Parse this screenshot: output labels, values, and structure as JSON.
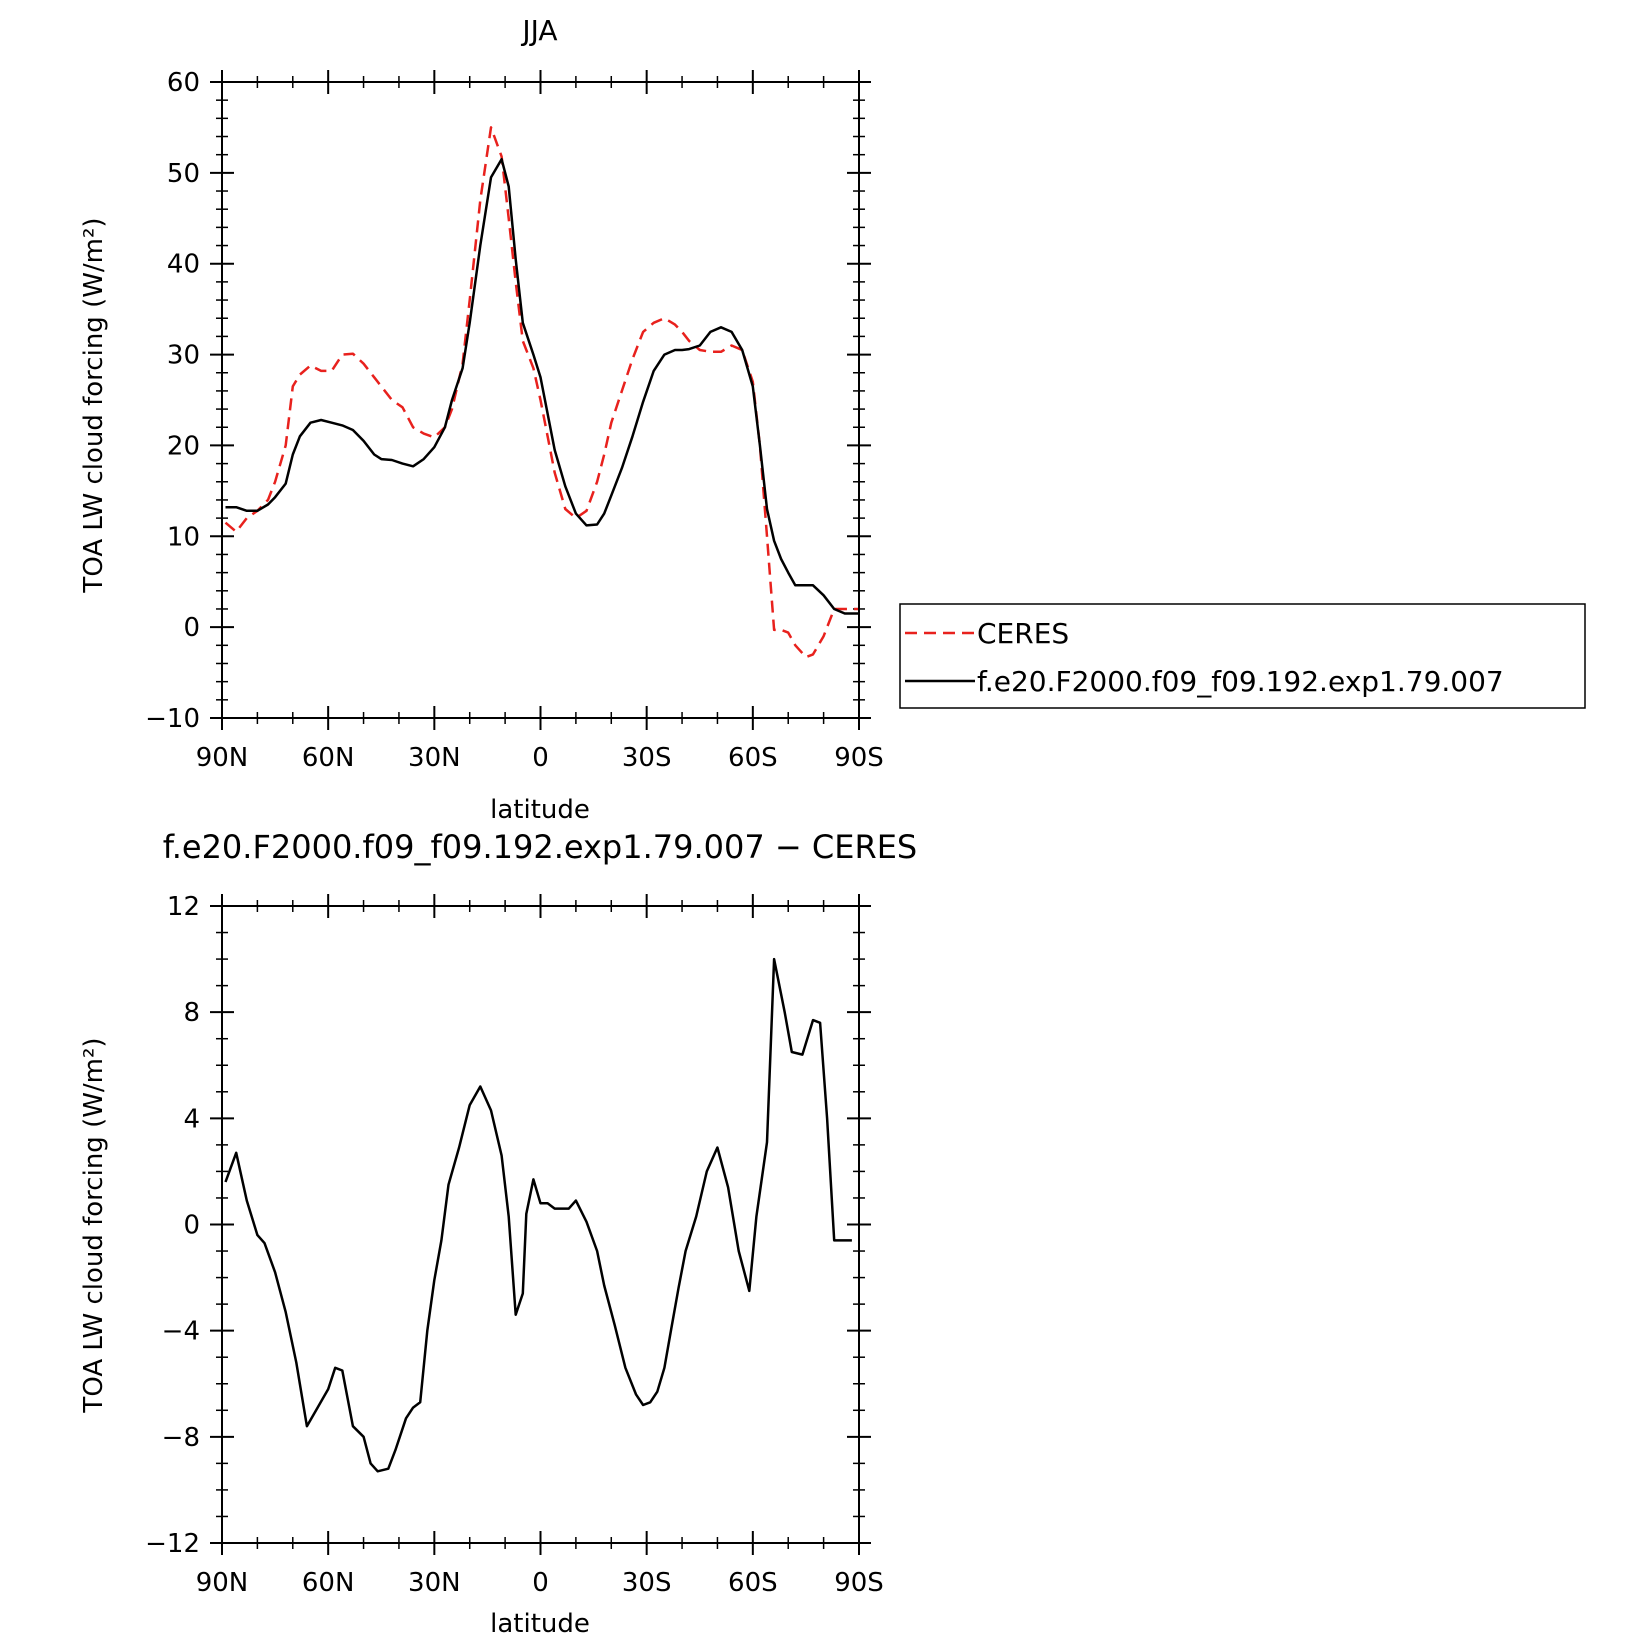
{
  "chart_data": [
    {
      "type": "line",
      "title": "JJA",
      "xlabel": "latitude",
      "ylabel": "TOA LW cloud forcing (W/m²)",
      "xlim": [
        90,
        -90
      ],
      "ylim": [
        -10,
        60
      ],
      "xticks": [
        {
          "value": 90,
          "label": "90N"
        },
        {
          "value": 60,
          "label": "60N"
        },
        {
          "value": 30,
          "label": "30N"
        },
        {
          "value": 0,
          "label": "0"
        },
        {
          "value": -30,
          "label": "30S"
        },
        {
          "value": -60,
          "label": "60S"
        },
        {
          "value": -90,
          "label": "90S"
        }
      ],
      "yticks": [
        -10,
        0,
        10,
        20,
        30,
        40,
        50,
        60
      ],
      "legend": {
        "position": "right"
      },
      "series": [
        {
          "name": "CERES",
          "color": "#e8211d",
          "dash": "dashed",
          "x": [
            89,
            86,
            83,
            80,
            77,
            75,
            72,
            70,
            68,
            65,
            62,
            59,
            56,
            53,
            50,
            47,
            45,
            42,
            39,
            36,
            33,
            30,
            27,
            25,
            22,
            20,
            17,
            14,
            11,
            9,
            7,
            5,
            2,
            0,
            -2,
            -4,
            -7,
            -10,
            -13,
            -16,
            -18,
            -20,
            -23,
            -26,
            -29,
            -32,
            -35,
            -38,
            -40,
            -42,
            -45,
            -48,
            -51,
            -54,
            -57,
            -60,
            -62,
            -64,
            -66,
            -68,
            -70,
            -72,
            -75,
            -77,
            -80,
            -83,
            -85,
            -88,
            -90
          ],
          "y": [
            11.5,
            10.5,
            12.0,
            12.8,
            14.0,
            16.0,
            20.0,
            26.5,
            27.8,
            28.8,
            28.2,
            28.2,
            30.0,
            30.1,
            29.0,
            27.5,
            26.5,
            25.0,
            24.2,
            22.0,
            21.3,
            20.9,
            22.0,
            24.0,
            29.0,
            36.0,
            47.0,
            55.0,
            51.8,
            45.0,
            38.0,
            31.5,
            28.5,
            25.0,
            21.0,
            17.0,
            13.0,
            12.0,
            12.8,
            16.0,
            19.0,
            22.5,
            26.0,
            29.5,
            32.5,
            33.5,
            34.0,
            33.3,
            32.5,
            31.5,
            30.5,
            30.3,
            30.3,
            31.0,
            30.5,
            27.0,
            20.0,
            10.0,
            -0.3,
            -0.3,
            -0.6,
            -2.0,
            -3.3,
            -3.0,
            -1.0,
            2.0,
            2.0,
            2.0,
            2.0
          ]
        },
        {
          "name": "f.e20.F2000.f09_f09.192.exp1.79.007",
          "color": "#000000",
          "dash": "solid",
          "x": [
            89,
            86,
            83,
            80,
            77,
            75,
            72,
            70,
            68,
            65,
            62,
            59,
            56,
            53,
            50,
            47,
            45,
            42,
            39,
            36,
            33,
            30,
            27,
            25,
            22,
            20,
            17,
            14,
            11,
            9,
            7,
            5,
            2,
            0,
            -2,
            -4,
            -7,
            -10,
            -13,
            -16,
            -18,
            -20,
            -23,
            -26,
            -29,
            -32,
            -35,
            -38,
            -40,
            -42,
            -45,
            -48,
            -51,
            -54,
            -57,
            -60,
            -62,
            -64,
            -66,
            -68,
            -70,
            -72,
            -75,
            -77,
            -80,
            -83,
            -86,
            -88,
            -90
          ],
          "y": [
            13.2,
            13.2,
            12.8,
            12.8,
            13.5,
            14.3,
            15.8,
            19.0,
            21.0,
            22.5,
            22.8,
            22.5,
            22.2,
            21.7,
            20.5,
            19.0,
            18.5,
            18.4,
            18.0,
            17.7,
            18.5,
            19.8,
            22.0,
            25.0,
            28.5,
            33.5,
            42.0,
            49.5,
            51.5,
            48.5,
            40.5,
            33.5,
            30.0,
            27.5,
            23.5,
            19.5,
            15.5,
            12.5,
            11.2,
            11.3,
            12.5,
            14.5,
            17.5,
            21.0,
            24.8,
            28.2,
            30.0,
            30.5,
            30.5,
            30.6,
            31.0,
            32.5,
            33.0,
            32.5,
            30.5,
            26.5,
            20.0,
            13.0,
            9.5,
            7.5,
            6.0,
            4.6,
            4.6,
            4.6,
            3.5,
            2.0,
            1.5,
            1.5,
            1.5
          ]
        }
      ]
    },
    {
      "type": "line",
      "title": "f.e20.F2000.f09_f09.192.exp1.79.007 − CERES",
      "xlabel": "latitude",
      "ylabel": "TOA LW cloud forcing (W/m²)",
      "xlim": [
        90,
        -90
      ],
      "ylim": [
        -12,
        12
      ],
      "xticks": [
        {
          "value": 90,
          "label": "90N"
        },
        {
          "value": 60,
          "label": "60N"
        },
        {
          "value": 30,
          "label": "30N"
        },
        {
          "value": 0,
          "label": "0"
        },
        {
          "value": -30,
          "label": "30S"
        },
        {
          "value": -60,
          "label": "60S"
        },
        {
          "value": -90,
          "label": "90S"
        }
      ],
      "yticks": [
        -12,
        -8,
        -4,
        0,
        4,
        8,
        12
      ],
      "series": [
        {
          "color": "#000000",
          "dash": "solid",
          "x": [
            89,
            86,
            83,
            80,
            78,
            75,
            72,
            69,
            66,
            63,
            60,
            58,
            56,
            53,
            50,
            48,
            46,
            43,
            41,
            38,
            36,
            34,
            32,
            30,
            28,
            26,
            23,
            20,
            17,
            14,
            11,
            9,
            7,
            5,
            4,
            2,
            0,
            -2,
            -4,
            -6,
            -8,
            -10,
            -13,
            -16,
            -18,
            -21,
            -24,
            -27,
            -29,
            -31,
            -33,
            -35,
            -37,
            -39,
            -41,
            -44,
            -47,
            -50,
            -53,
            -56,
            -59,
            -61,
            -64,
            -66,
            -69,
            -71,
            -74,
            -77,
            -79,
            -81,
            -83,
            -85,
            -88
          ],
          "y": [
            1.6,
            2.7,
            0.9,
            -0.4,
            -0.7,
            -1.8,
            -3.3,
            -5.2,
            -7.6,
            -6.9,
            -6.2,
            -5.4,
            -5.5,
            -7.6,
            -8.0,
            -9.0,
            -9.3,
            -9.2,
            -8.5,
            -7.3,
            -6.9,
            -6.7,
            -4.0,
            -2.1,
            -0.6,
            1.5,
            2.9,
            4.5,
            5.2,
            4.3,
            2.6,
            0.3,
            -3.4,
            -2.6,
            0.4,
            1.7,
            0.8,
            0.8,
            0.6,
            0.6,
            0.6,
            0.9,
            0.1,
            -1.0,
            -2.3,
            -3.8,
            -5.4,
            -6.4,
            -6.8,
            -6.7,
            -6.3,
            -5.4,
            -3.9,
            -2.4,
            -1.0,
            0.3,
            2.0,
            2.9,
            1.4,
            -1.0,
            -2.5,
            0.3,
            3.1,
            10.0,
            8.0,
            6.5,
            6.4,
            7.7,
            7.6,
            4.0,
            -0.6,
            -0.6,
            -0.6
          ]
        }
      ]
    }
  ],
  "colors": {
    "ceres": "#e8211d",
    "model": "#000000",
    "axes": "#000000"
  }
}
